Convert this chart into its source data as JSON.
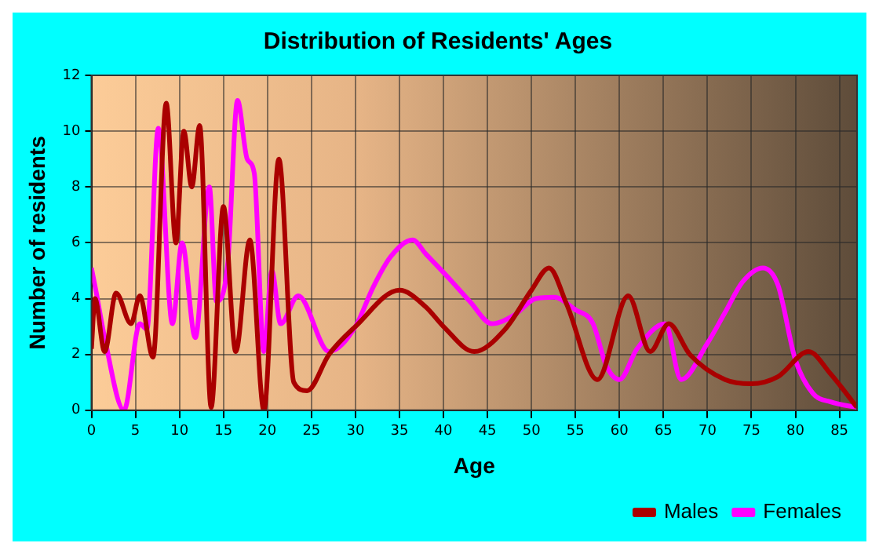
{
  "chart_data": {
    "type": "line",
    "title": "Distribution of Residents' Ages",
    "xlabel": "Age",
    "ylabel": "Number of residents",
    "xlim": [
      0,
      87
    ],
    "xticks": [
      0,
      5,
      10,
      15,
      20,
      25,
      30,
      35,
      40,
      45,
      50,
      55,
      60,
      65,
      70,
      75,
      80,
      85
    ],
    "ylim": [
      0,
      12
    ],
    "yticks": [
      0,
      2,
      4,
      6,
      8,
      10,
      12
    ],
    "grid": true,
    "legend": "bottom right",
    "marker": "none",
    "line_style": "solid",
    "series": [
      {
        "name": "Males",
        "color": "#aa0000",
        "x": [
          0,
          0.4,
          1.5,
          2.8,
          4.5,
          5.5,
          7,
          8.5,
          9.6,
          10.5,
          11.4,
          12.3,
          13.6,
          15,
          16.4,
          18,
          19.6,
          21.3,
          23,
          24.5,
          27,
          30,
          35,
          38,
          40,
          43.5,
          47,
          50,
          52,
          54,
          57.5,
          61,
          63.5,
          65.6,
          68,
          72,
          75,
          78,
          81.5,
          84,
          87
        ],
        "values": [
          2.2,
          4,
          2.1,
          4.2,
          3.1,
          4.1,
          1.9,
          11,
          6,
          10,
          8,
          10.2,
          0.1,
          7.3,
          2.1,
          6.1,
          0,
          9,
          1,
          0.7,
          2,
          3,
          4.3,
          3.7,
          3,
          2.1,
          2.9,
          4.3,
          5.1,
          3.8,
          1.1,
          4.1,
          2.1,
          3.1,
          2,
          1.1,
          0.95,
          1.2,
          2.1,
          1.3,
          0.1
        ]
      },
      {
        "name": "Females",
        "color": "#ff00ff",
        "x": [
          0,
          0.5,
          1.5,
          3.7,
          5.5,
          6.3,
          7.6,
          9.2,
          10.3,
          11.8,
          13.4,
          14.2,
          15.5,
          16.6,
          17.7,
          18.5,
          19.6,
          20.5,
          21.5,
          23.5,
          27,
          30,
          32,
          34,
          36.5,
          38,
          41,
          43,
          45.5,
          48,
          50.5,
          52.6,
          55,
          57,
          58.5,
          60,
          62,
          65.2,
          67,
          70,
          72,
          74,
          76.3,
          78,
          80,
          82,
          84,
          87
        ],
        "values": [
          5.1,
          4.3,
          2.6,
          0,
          3.1,
          2.9,
          10.1,
          3.1,
          6,
          2.6,
          8,
          3.9,
          5.3,
          11.1,
          9,
          8.5,
          2.1,
          5,
          3.1,
          4.1,
          2.1,
          3,
          4.4,
          5.5,
          6.1,
          5.6,
          4.6,
          3.9,
          3.1,
          3.4,
          4,
          4.05,
          3.6,
          3.1,
          1.6,
          1.1,
          2.2,
          3.1,
          1.1,
          2.4,
          3.5,
          4.6,
          5.1,
          4.5,
          1.8,
          0.6,
          0.3,
          0.1
        ]
      }
    ]
  }
}
